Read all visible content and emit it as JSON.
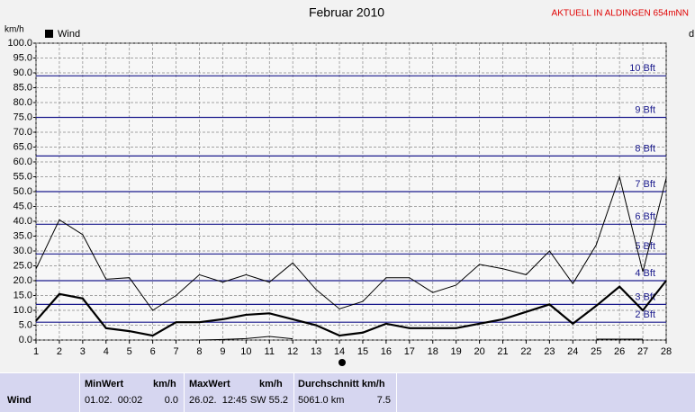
{
  "chart_data": {
    "type": "line",
    "title": "Februar 2010",
    "station": "AKTUELL IN ALDINGEN 654mNN",
    "y_label": "km/h",
    "right_label": "d",
    "x": [
      1,
      2,
      3,
      4,
      5,
      6,
      7,
      8,
      9,
      10,
      11,
      12,
      13,
      14,
      15,
      16,
      17,
      18,
      19,
      20,
      21,
      22,
      23,
      24,
      25,
      26,
      27,
      28
    ],
    "xlim": [
      1,
      28
    ],
    "xticks": [
      1,
      2,
      3,
      4,
      5,
      6,
      7,
      8,
      9,
      10,
      11,
      12,
      13,
      14,
      15,
      16,
      17,
      18,
      19,
      20,
      21,
      22,
      23,
      24,
      25,
      26,
      27,
      28
    ],
    "ylim": [
      0,
      100
    ],
    "yticks": [
      {
        "value": 0,
        "label": "0.0"
      },
      {
        "value": 5,
        "label": "5.0"
      },
      {
        "value": 10,
        "label": "10.0"
      },
      {
        "value": 15,
        "label": "15.0"
      },
      {
        "value": 20,
        "label": "20.0"
      },
      {
        "value": 25,
        "label": "25.0"
      },
      {
        "value": 30,
        "label": "30.0"
      },
      {
        "value": 35,
        "label": "35.0"
      },
      {
        "value": 40,
        "label": "40.0"
      },
      {
        "value": 45,
        "label": "45.0"
      },
      {
        "value": 50,
        "label": "50.0"
      },
      {
        "value": 55,
        "label": "55.0"
      },
      {
        "value": 60,
        "label": "60.0"
      },
      {
        "value": 65,
        "label": "65.0"
      },
      {
        "value": 70,
        "label": "70.0"
      },
      {
        "value": 75,
        "label": "75.0"
      },
      {
        "value": 80,
        "label": "80.0"
      },
      {
        "value": 85,
        "label": "85.0"
      },
      {
        "value": 90,
        "label": "90.0"
      },
      {
        "value": 95,
        "label": "95.0"
      },
      {
        "value": 100,
        "label": "100.0"
      }
    ],
    "grid": true,
    "reference_lines": [
      {
        "value": 6,
        "label": "2 Bft"
      },
      {
        "value": 12,
        "label": "3 Bft"
      },
      {
        "value": 20,
        "label": "4 Bft"
      },
      {
        "value": 29,
        "label": "5 Bft"
      },
      {
        "value": 39,
        "label": "6 Bft"
      },
      {
        "value": 50,
        "label": "7 Bft"
      },
      {
        "value": 62,
        "label": "8 Bft"
      },
      {
        "value": 75,
        "label": "9 Bft"
      },
      {
        "value": 89,
        "label": "10 Bft"
      }
    ],
    "reference_color": "#1a1a8c",
    "series": [
      {
        "name": "Wind",
        "color": "#000000",
        "width": 2.2,
        "values": [
          6.5,
          15.5,
          14,
          4,
          3,
          1.5,
          6,
          6,
          7,
          8.5,
          9,
          7,
          5,
          1.5,
          2.5,
          5.5,
          4,
          4,
          4,
          5.5,
          7,
          9.5,
          12,
          5.5,
          11.5,
          18,
          10,
          20
        ]
      },
      {
        "color": "#000000",
        "width": 1,
        "values": [
          24,
          40.5,
          35.5,
          20.5,
          21,
          10,
          15,
          22,
          19.5,
          22,
          19.5,
          26,
          17,
          10.5,
          13,
          21,
          21,
          16,
          18.5,
          25.5,
          24,
          22,
          30,
          19,
          32,
          55,
          23,
          54.5
        ]
      },
      {
        "color": "#000000",
        "width": 1,
        "values": [
          null,
          null,
          null,
          null,
          null,
          null,
          null,
          0,
          0.2,
          0.5,
          1.2,
          0.4,
          null,
          null,
          null,
          null,
          null,
          null,
          null,
          null,
          null,
          null,
          null,
          null,
          0.3,
          0.3,
          0.3,
          null
        ]
      }
    ]
  },
  "stats": {
    "row_label": "Wind",
    "min": {
      "header": "MinWert",
      "unit": "km/h",
      "time": "01.02.  00:02",
      "value": "0.0"
    },
    "max": {
      "header": "MaxWert",
      "unit": "km/h",
      "time": "26.02.  12:45",
      "value": "SW 55.2"
    },
    "avg": {
      "header": "Durchschnitt km/h",
      "distance": "5061.0 km",
      "value": "7.5"
    }
  }
}
